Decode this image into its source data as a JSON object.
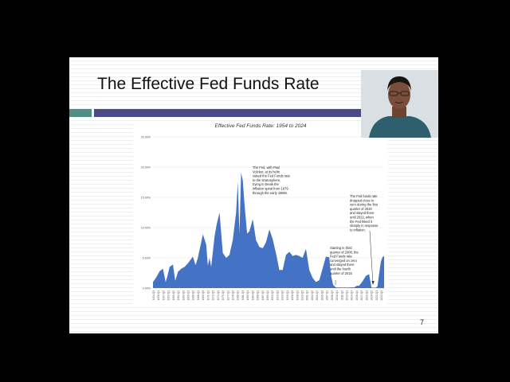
{
  "slide": {
    "title": "The Effective Fed Funds Rate",
    "page_number": "7"
  },
  "colors": {
    "teal": "#4f8f86",
    "purple": "#4a4a86",
    "area_fill": "#4472c4"
  },
  "chart_data": {
    "type": "area",
    "title": "Effective Fed Funds Rate: 1954 to 2024",
    "ylim": [
      0,
      25
    ],
    "y_ticks": [
      "0.00%",
      "5.00%",
      "10.00%",
      "15.00%",
      "20.00%",
      "25.00%"
    ],
    "y_tick_values": [
      0,
      5,
      10,
      15,
      20,
      25
    ],
    "x": [
      1954.5,
      1955.5,
      1956.5,
      1957.5,
      1958.3,
      1958.8,
      1959.5,
      1960.5,
      1961.2,
      1962.0,
      1963.0,
      1964.0,
      1965.0,
      1966.5,
      1967.3,
      1968.0,
      1969.5,
      1970.5,
      1971.0,
      1971.5,
      1972.0,
      1973.0,
      1973.6,
      1974.5,
      1975.5,
      1976.5,
      1977.5,
      1978.5,
      1979.5,
      1980.0,
      1980.5,
      1981.0,
      1981.5,
      1982.0,
      1982.8,
      1983.5,
      1984.5,
      1985.5,
      1986.5,
      1987.5,
      1988.5,
      1989.5,
      1990.5,
      1991.5,
      1992.5,
      1993.5,
      1994.5,
      1995.5,
      1996.5,
      1997.5,
      1998.5,
      1999.5,
      2000.5,
      2001.5,
      2002.5,
      2003.5,
      2004.5,
      2005.5,
      2006.5,
      2007.5,
      2008.0,
      2008.7,
      2009.5,
      2011.0,
      2013.0,
      2015.0,
      2015.9,
      2016.5,
      2017.5,
      2018.5,
      2019.5,
      2020.2,
      2020.5,
      2021.5,
      2022.0,
      2022.5,
      2023.0,
      2023.5,
      2024.0
    ],
    "y": [
      1.0,
      1.8,
      2.8,
      3.2,
      1.0,
      1.9,
      3.5,
      3.9,
      1.2,
      2.7,
      3.2,
      3.5,
      4.1,
      5.2,
      3.8,
      5.0,
      8.9,
      7.2,
      3.7,
      5.0,
      3.5,
      8.5,
      10.4,
      12.5,
      5.8,
      5.0,
      5.5,
      8.0,
      12.5,
      17.6,
      9.0,
      19.1,
      17.8,
      14.0,
      9.0,
      9.4,
      11.4,
      7.9,
      6.8,
      6.6,
      7.6,
      9.7,
      8.1,
      5.7,
      3.0,
      3.0,
      5.5,
      6.0,
      5.3,
      5.5,
      5.3,
      5.0,
      6.5,
      3.0,
      1.7,
      1.0,
      1.3,
      3.2,
      5.2,
      5.1,
      2.2,
      0.5,
      0.12,
      0.1,
      0.1,
      0.13,
      0.4,
      0.4,
      1.1,
      2.0,
      2.3,
      0.08,
      0.08,
      0.08,
      0.3,
      2.3,
      4.3,
      5.1,
      5.33
    ],
    "x_tick_labels": [
      "1954-Q3",
      "1956-Q1",
      "1957-Q3",
      "1959-Q1",
      "1960-Q3",
      "1962-Q1",
      "1963-Q3",
      "1965-Q1",
      "1966-Q3",
      "1968-Q1",
      "1969-Q3",
      "1971-Q1",
      "1972-Q3",
      "1974-Q1",
      "1975-Q3",
      "1977-Q1",
      "1978-Q3",
      "1980-Q1",
      "1981-Q3",
      "1983-Q1",
      "1984-Q3",
      "1986-Q1",
      "1987-Q3",
      "1989-Q1",
      "1990-Q3",
      "1992-Q1",
      "1993-Q3",
      "1995-Q1",
      "1996-Q3",
      "1998-Q1",
      "1999-Q3",
      "2001-Q1",
      "2002-Q3",
      "2004-Q1",
      "2005-Q3",
      "2007-Q1",
      "2008-Q3",
      "2010-Q1",
      "2011-Q3",
      "2013-Q1",
      "2014-Q3",
      "2016-Q1",
      "2017-Q3",
      "2019-Q1",
      "2020-Q3",
      "2022-Q1",
      "2023-Q3"
    ],
    "annotations": [
      {
        "lines": [
          "The Fed, with Paul",
          "Volcker, at its helm",
          "raised the Fed Funds rate",
          "to the stratosphere,",
          "trying to break the",
          "inflation spiral from 1979",
          "through the early 1980s."
        ]
      },
      {
        "lines": [
          "The Fed funds rate",
          "dropped close to",
          "zero during the first",
          "quarter of 2020",
          "and stayed there",
          "until 2022, when",
          "the Fed hiked it",
          "sharply in response",
          "to inflation."
        ]
      },
      {
        "lines": [
          "Starting in third",
          "quarter of 2008, the",
          "Fed Funds rate",
          "converged on zero",
          "and stayed there",
          "until the fourth",
          "quarter of 2015"
        ]
      }
    ]
  }
}
